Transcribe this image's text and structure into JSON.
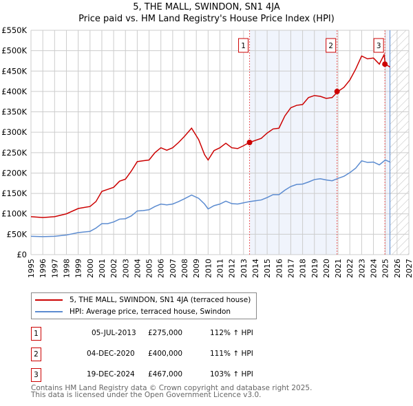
{
  "title": "5, THE MALL, SWINDON, SN1 4JA",
  "subtitle": "Price paid vs. HM Land Registry's House Price Index (HPI)",
  "legend": [
    {
      "label": "5, THE MALL, SWINDON, SN1 4JA (terraced house)",
      "color": "#cc0000"
    },
    {
      "label": "HPI: Average price, terraced house, Swindon",
      "color": "#5b8bd0"
    }
  ],
  "sales": [
    {
      "num": "1",
      "date": "05-JUL-2013",
      "price": "£275,000",
      "hpi": "112% ↑ HPI",
      "x": 2013.51,
      "y": 275
    },
    {
      "num": "2",
      "date": "04-DEC-2020",
      "price": "£400,000",
      "hpi": "111% ↑ HPI",
      "x": 2020.92,
      "y": 400
    },
    {
      "num": "3",
      "date": "19-DEC-2024",
      "price": "£467,000",
      "hpi": "103% ↑ HPI",
      "x": 2024.97,
      "y": 467
    }
  ],
  "footer": [
    "Contains HM Land Registry data © Crown copyright and database right 2025.",
    "This data is licensed under the Open Government Licence v3.0."
  ],
  "chart_data": {
    "type": "line",
    "xlim": [
      1995,
      2027
    ],
    "ylim": [
      0,
      550
    ],
    "yticks": [
      0,
      50,
      100,
      150,
      200,
      250,
      300,
      350,
      400,
      450,
      500,
      550
    ],
    "ytick_labels": [
      "£0",
      "£50K",
      "£100K",
      "£150K",
      "£200K",
      "£250K",
      "£300K",
      "£350K",
      "£400K",
      "£450K",
      "£500K",
      "£550K"
    ],
    "xticks": [
      1995,
      1996,
      1997,
      1998,
      1999,
      2000,
      2001,
      2002,
      2003,
      2004,
      2005,
      2006,
      2007,
      2008,
      2009,
      2010,
      2011,
      2012,
      2013,
      2014,
      2015,
      2016,
      2017,
      2018,
      2019,
      2020,
      2021,
      2022,
      2023,
      2024,
      2025,
      2026,
      2027
    ],
    "shaded_range": [
      2013.51,
      2020.92
    ],
    "shaded_range2": [
      2024.97,
      2025.4
    ],
    "forecast_from": 2025.4,
    "series": [
      {
        "name": "5, THE MALL, SWINDON, SN1 4JA (terraced house)",
        "color": "#cc0000",
        "points": [
          [
            1995,
            93
          ],
          [
            1996,
            91
          ],
          [
            1997,
            93
          ],
          [
            1998,
            100
          ],
          [
            1999,
            113
          ],
          [
            2000,
            118
          ],
          [
            2000.5,
            130
          ],
          [
            2001,
            155
          ],
          [
            2001.5,
            160
          ],
          [
            2002,
            165
          ],
          [
            2002.5,
            180
          ],
          [
            2003,
            185
          ],
          [
            2003.5,
            205
          ],
          [
            2004,
            228
          ],
          [
            2004.5,
            230
          ],
          [
            2005,
            232
          ],
          [
            2005.5,
            250
          ],
          [
            2006,
            262
          ],
          [
            2006.5,
            256
          ],
          [
            2007,
            262
          ],
          [
            2007.5,
            275
          ],
          [
            2008,
            290
          ],
          [
            2008.6,
            310
          ],
          [
            2009.2,
            282
          ],
          [
            2009.7,
            245
          ],
          [
            2010,
            232
          ],
          [
            2010.5,
            255
          ],
          [
            2011,
            262
          ],
          [
            2011.5,
            273
          ],
          [
            2012,
            262
          ],
          [
            2012.5,
            260
          ],
          [
            2013,
            267
          ],
          [
            2013.5,
            275
          ],
          [
            2014,
            280
          ],
          [
            2014.5,
            285
          ],
          [
            2015,
            298
          ],
          [
            2015.5,
            308
          ],
          [
            2016,
            310
          ],
          [
            2016.5,
            340
          ],
          [
            2017,
            360
          ],
          [
            2017.5,
            366
          ],
          [
            2018,
            368
          ],
          [
            2018.5,
            385
          ],
          [
            2019,
            390
          ],
          [
            2019.5,
            388
          ],
          [
            2020,
            383
          ],
          [
            2020.5,
            385
          ],
          [
            2021,
            400
          ],
          [
            2021.5,
            410
          ],
          [
            2022,
            428
          ],
          [
            2022.5,
            455
          ],
          [
            2023,
            487
          ],
          [
            2023.5,
            480
          ],
          [
            2024,
            482
          ],
          [
            2024.5,
            467
          ],
          [
            2024.9,
            490
          ],
          [
            2025,
            467
          ],
          [
            2025.4,
            460
          ]
        ]
      },
      {
        "name": "HPI: Average price, terraced house, Swindon",
        "color": "#5b8bd0",
        "points": [
          [
            1995,
            45
          ],
          [
            1996,
            44
          ],
          [
            1997,
            45
          ],
          [
            1998,
            48
          ],
          [
            1999,
            54
          ],
          [
            2000,
            57
          ],
          [
            2000.5,
            65
          ],
          [
            2001,
            76
          ],
          [
            2001.5,
            76
          ],
          [
            2002,
            80
          ],
          [
            2002.5,
            87
          ],
          [
            2003,
            88
          ],
          [
            2003.5,
            95
          ],
          [
            2004,
            107
          ],
          [
            2004.5,
            108
          ],
          [
            2005,
            110
          ],
          [
            2005.5,
            118
          ],
          [
            2006,
            124
          ],
          [
            2006.5,
            122
          ],
          [
            2007,
            124
          ],
          [
            2007.5,
            130
          ],
          [
            2008,
            137
          ],
          [
            2008.6,
            146
          ],
          [
            2009.2,
            138
          ],
          [
            2009.7,
            124
          ],
          [
            2010,
            112
          ],
          [
            2010.5,
            120
          ],
          [
            2011,
            124
          ],
          [
            2011.5,
            131
          ],
          [
            2012,
            125
          ],
          [
            2012.5,
            124
          ],
          [
            2013,
            127
          ],
          [
            2013.5,
            130
          ],
          [
            2014,
            132
          ],
          [
            2014.5,
            134
          ],
          [
            2015,
            140
          ],
          [
            2015.5,
            147
          ],
          [
            2016,
            147
          ],
          [
            2016.5,
            158
          ],
          [
            2017,
            167
          ],
          [
            2017.5,
            172
          ],
          [
            2018,
            173
          ],
          [
            2018.5,
            178
          ],
          [
            2019,
            184
          ],
          [
            2019.5,
            186
          ],
          [
            2020,
            183
          ],
          [
            2020.5,
            181
          ],
          [
            2021,
            187
          ],
          [
            2021.5,
            192
          ],
          [
            2022,
            201
          ],
          [
            2022.5,
            212
          ],
          [
            2023,
            230
          ],
          [
            2023.5,
            226
          ],
          [
            2024,
            227
          ],
          [
            2024.5,
            220
          ],
          [
            2025,
            232
          ],
          [
            2025.4,
            227
          ]
        ]
      }
    ]
  }
}
